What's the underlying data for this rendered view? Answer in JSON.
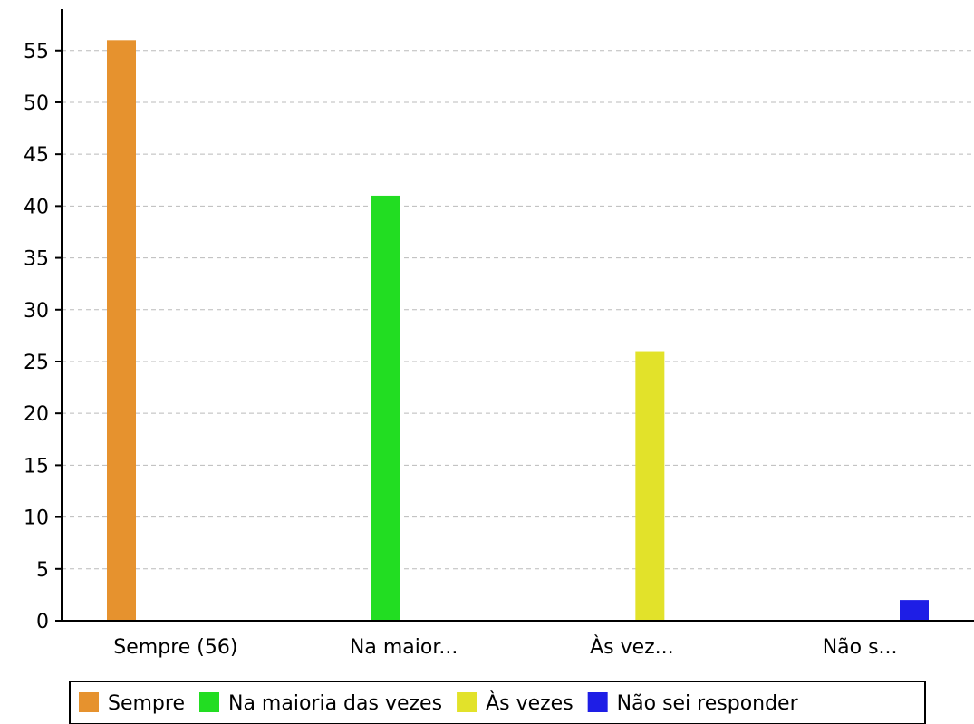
{
  "chart_data": {
    "type": "bar",
    "categories": [
      "Sempre (56)",
      "Na maior...",
      "Às vez...",
      "Não s..."
    ],
    "series": [
      {
        "name": "Sempre",
        "color": "#e6922e",
        "values": [
          56,
          0,
          0,
          0
        ]
      },
      {
        "name": "Na maioria das vezes",
        "color": "#22dd22",
        "values": [
          0,
          41,
          0,
          0
        ]
      },
      {
        "name": "Às vezes",
        "color": "#e2e22a",
        "values": [
          0,
          0,
          26,
          0
        ]
      },
      {
        "name": "Não sei responder",
        "color": "#1e1ee6",
        "values": [
          0,
          0,
          0,
          2
        ]
      }
    ],
    "yticks": [
      "0",
      "5",
      "10",
      "15",
      "20",
      "25",
      "30",
      "35",
      "40",
      "45",
      "50",
      "55"
    ],
    "ylim": [
      0,
      59
    ],
    "grid": true,
    "legend": "bottom"
  }
}
